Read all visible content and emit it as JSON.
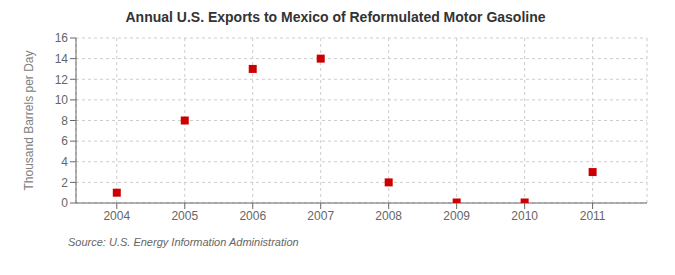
{
  "chart_data": {
    "type": "scatter",
    "title": "Annual U.S. Exports to Mexico of Reformulated Motor Gasoline",
    "ylabel": "Thousand Barrels per Day",
    "annotations": [
      "Source: U.S. Energy Information Administration"
    ],
    "x": [
      2004,
      2005,
      2006,
      2007,
      2008,
      2009,
      2010,
      2011
    ],
    "values": [
      1,
      8,
      13,
      14,
      2,
      0.05,
      0.05,
      3
    ],
    "xlim": [
      2003.4,
      2011.8
    ],
    "xticks": [
      2004,
      2005,
      2006,
      2007,
      2008,
      2009,
      2010,
      2011
    ],
    "ylim": [
      0,
      16
    ],
    "yticks": [
      0,
      2,
      4,
      6,
      8,
      10,
      12,
      14,
      16
    ],
    "color": "#cc0000",
    "marker": "square",
    "grid": true
  }
}
